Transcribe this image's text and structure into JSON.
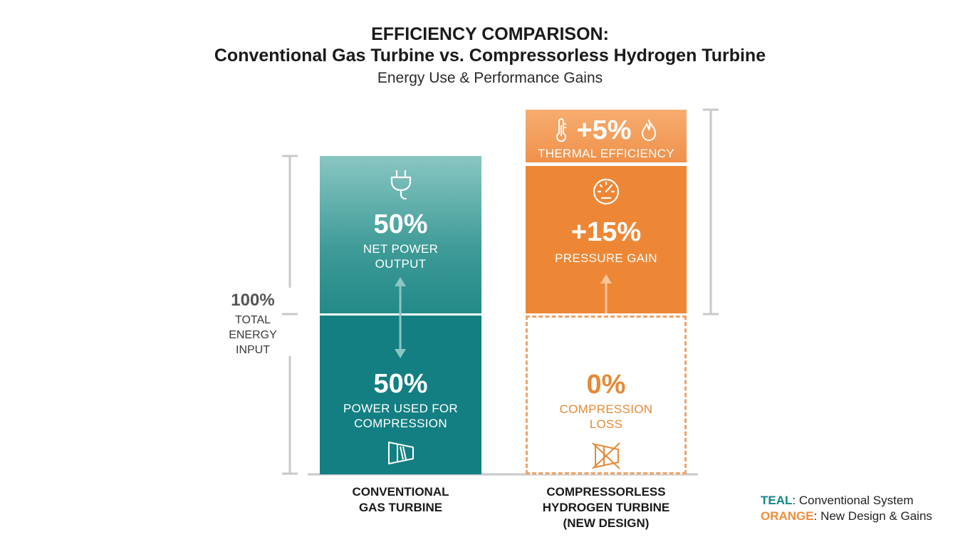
{
  "title_line1": "EFFICIENCY COMPARISON:",
  "title_line2": "Conventional Gas Turbine vs. Compressorless Hydrogen Turbine",
  "subtitle": "Energy Use & Performance Gains",
  "axis": {
    "value": "100%",
    "label_lines": [
      "TOTAL",
      "ENERGY",
      "INPUT"
    ]
  },
  "chart_data": {
    "type": "bar",
    "stacked": true,
    "categories": [
      "CONVENTIONAL GAS TURBINE",
      "COMPRESSORLESS HYDROGEN TURBINE (NEW DESIGN)"
    ],
    "category_lines": [
      [
        "CONVENTIONAL",
        "GAS TURBINE"
      ],
      [
        "COMPRESSORLESS",
        "HYDROGEN TURBINE",
        "(NEW DESIGN)"
      ]
    ],
    "bars": [
      {
        "segments": [
          {
            "value_text": "50%",
            "label_lines": [
              "POWER USED FOR",
              "COMPRESSION"
            ],
            "value": 50,
            "icon": "compressor-icon",
            "color": "#137f82"
          },
          {
            "value_text": "50%",
            "label_lines": [
              "NET POWER",
              "OUTPUT"
            ],
            "value": 50,
            "icon": "plug-icon",
            "color": "#3d9a97"
          }
        ]
      },
      {
        "segments": [
          {
            "value_text": "0%",
            "label_lines": [
              "COMPRESSION",
              "LOSS"
            ],
            "value": 0,
            "icon": "no-compressor-icon",
            "color": "#eea46a",
            "style": "dashed-outline"
          },
          {
            "value_text": "+15%",
            "label_lines": [
              "PRESSURE GAIN"
            ],
            "value": 15,
            "icon": "gauge-icon",
            "color": "#ee8735"
          },
          {
            "value_text": "+5%",
            "label_lines": [
              "THERMAL EFFICIENCY"
            ],
            "value": 5,
            "icons": [
              "thermometer-icon",
              "flame-icon"
            ],
            "color": "#f0914a"
          }
        ]
      }
    ]
  },
  "legend": {
    "teal_key": "TEAL",
    "teal_text": ": Conventional System",
    "orange_key": "ORANGE",
    "orange_text": ": New Design & Gains",
    "teal_color": "#13858a",
    "orange_color": "#ef8d3a"
  }
}
